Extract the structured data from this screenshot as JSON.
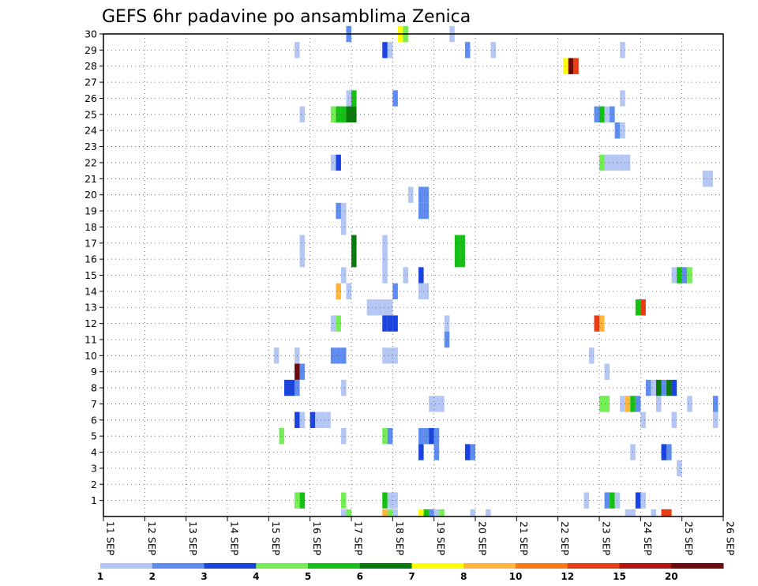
{
  "chart_data": {
    "type": "heatmap",
    "title": "GEFS 6hr padavine po ansamblima Zenica",
    "xlabel": "",
    "ylabel": "",
    "x_tick_labels": [
      "11 SEP",
      "12 SEP",
      "13 SEP",
      "14 SEP",
      "15 SEP",
      "16 SEP",
      "17 SEP",
      "18 SEP",
      "19 SEP",
      "20 SEP",
      "21 SEP",
      "22 SEP",
      "23 SEP",
      "24 SEP",
      "25 SEP",
      "26 SEP"
    ],
    "x_range": [
      "11 SEP 00Z",
      "26 SEP 00Z"
    ],
    "time_step_hours": 6,
    "y_tick_labels": [
      "1",
      "2",
      "3",
      "4",
      "5",
      "6",
      "7",
      "8",
      "9",
      "10",
      "11",
      "12",
      "13",
      "14",
      "15",
      "16",
      "17",
      "18",
      "19",
      "20",
      "21",
      "22",
      "23",
      "24",
      "25",
      "26",
      "27",
      "28",
      "29",
      "30"
    ],
    "y_range": [
      0,
      30
    ],
    "grid": "dotted",
    "colorbar": {
      "placement": "bottom",
      "labels": [
        "1",
        "2",
        "3",
        "4",
        "5",
        "6",
        "7",
        "8",
        "10",
        "12",
        "15",
        "20"
      ],
      "bounds": [
        1,
        2,
        3,
        4,
        5,
        6,
        7,
        8,
        10,
        12,
        15,
        20
      ],
      "colors": [
        "#b4c6f4",
        "#5e8cf0",
        "#1a44dd",
        "#75ee55",
        "#14c014",
        "#0a7a0a",
        "#ffff00",
        "#ffb43c",
        "#ff7a14",
        "#e83c14",
        "#b41410",
        "#6e0a0a"
      ]
    },
    "cells_note": "each cell: [member, time index (0 = 11 SEP 00Z, step 6h), color class index into colorbar.colors]",
    "cells": [
      [
        30,
        47,
        1
      ],
      [
        30,
        57,
        6
      ],
      [
        30,
        58,
        3
      ],
      [
        30,
        67,
        0
      ],
      [
        29,
        37,
        0
      ],
      [
        29,
        54,
        2
      ],
      [
        29,
        55,
        0
      ],
      [
        29,
        70,
        1
      ],
      [
        29,
        75,
        0
      ],
      [
        29,
        100,
        0
      ],
      [
        28,
        89,
        6
      ],
      [
        28,
        90,
        11
      ],
      [
        28,
        91,
        9
      ],
      [
        26,
        47,
        0
      ],
      [
        26,
        48,
        4
      ],
      [
        26,
        56,
        1
      ],
      [
        26,
        100,
        0
      ],
      [
        26,
        143,
        5
      ],
      [
        26,
        144,
        0
      ],
      [
        25,
        38,
        0
      ],
      [
        25,
        44,
        3
      ],
      [
        25,
        45,
        4
      ],
      [
        25,
        46,
        4
      ],
      [
        25,
        47,
        5
      ],
      [
        25,
        48,
        5
      ],
      [
        25,
        95,
        1
      ],
      [
        25,
        96,
        4
      ],
      [
        25,
        97,
        0
      ],
      [
        25,
        98,
        1
      ],
      [
        25,
        140,
        0
      ],
      [
        24,
        99,
        1
      ],
      [
        24,
        100,
        0
      ],
      [
        24,
        126,
        1
      ],
      [
        24,
        127,
        3
      ],
      [
        24,
        138,
        4
      ],
      [
        24,
        139,
        0
      ],
      [
        23,
        124,
        0
      ],
      [
        22,
        44,
        0
      ],
      [
        22,
        45,
        2
      ],
      [
        22,
        96,
        3
      ],
      [
        22,
        97,
        0
      ],
      [
        22,
        98,
        0
      ],
      [
        22,
        99,
        0
      ],
      [
        22,
        100,
        0
      ],
      [
        22,
        101,
        0
      ],
      [
        21,
        116,
        0
      ],
      [
        21,
        117,
        0
      ],
      [
        21,
        124,
        0
      ],
      [
        21,
        125,
        0
      ],
      [
        20,
        59,
        0
      ],
      [
        20,
        61,
        1
      ],
      [
        20,
        62,
        1
      ],
      [
        20,
        146,
        0
      ],
      [
        19,
        45,
        1
      ],
      [
        19,
        46,
        0
      ],
      [
        19,
        61,
        1
      ],
      [
        19,
        62,
        1
      ],
      [
        18,
        46,
        0
      ],
      [
        17,
        38,
        0
      ],
      [
        17,
        48,
        5
      ],
      [
        17,
        54,
        0
      ],
      [
        17,
        68,
        4
      ],
      [
        17,
        69,
        4
      ],
      [
        17,
        124,
        0
      ],
      [
        17,
        126,
        9
      ],
      [
        17,
        127,
        8
      ],
      [
        17,
        129,
        1
      ],
      [
        17,
        130,
        0
      ],
      [
        16,
        38,
        0
      ],
      [
        16,
        48,
        5
      ],
      [
        16,
        54,
        0
      ],
      [
        16,
        68,
        4
      ],
      [
        16,
        69,
        4
      ],
      [
        16,
        124,
        0
      ],
      [
        16,
        126,
        9
      ],
      [
        16,
        127,
        8
      ],
      [
        16,
        129,
        1
      ],
      [
        16,
        130,
        0
      ],
      [
        15,
        46,
        0
      ],
      [
        15,
        54,
        0
      ],
      [
        15,
        58,
        0
      ],
      [
        15,
        61,
        2
      ],
      [
        15,
        110,
        0
      ],
      [
        15,
        111,
        4
      ],
      [
        15,
        112,
        1
      ],
      [
        15,
        113,
        3
      ],
      [
        15,
        124,
        0
      ],
      [
        14,
        45,
        7
      ],
      [
        14,
        47,
        0
      ],
      [
        14,
        56,
        1
      ],
      [
        14,
        61,
        0
      ],
      [
        14,
        62,
        0
      ],
      [
        13,
        51,
        0
      ],
      [
        13,
        52,
        0
      ],
      [
        13,
        53,
        0
      ],
      [
        13,
        54,
        0
      ],
      [
        13,
        55,
        0
      ],
      [
        13,
        103,
        4
      ],
      [
        13,
        104,
        9
      ],
      [
        13,
        122,
        0
      ],
      [
        13,
        123,
        0
      ],
      [
        13,
        124,
        0
      ],
      [
        13,
        125,
        0
      ],
      [
        13,
        126,
        0
      ],
      [
        13,
        127,
        0
      ],
      [
        12,
        44,
        0
      ],
      [
        12,
        45,
        3
      ],
      [
        12,
        54,
        2
      ],
      [
        12,
        55,
        2
      ],
      [
        12,
        56,
        2
      ],
      [
        12,
        66,
        0
      ],
      [
        12,
        95,
        9
      ],
      [
        12,
        96,
        7
      ],
      [
        11,
        66,
        1
      ],
      [
        10,
        33,
        0
      ],
      [
        10,
        37,
        0
      ],
      [
        10,
        44,
        1
      ],
      [
        10,
        45,
        1
      ],
      [
        10,
        46,
        1
      ],
      [
        10,
        54,
        0
      ],
      [
        10,
        55,
        0
      ],
      [
        10,
        56,
        0
      ],
      [
        10,
        94,
        0
      ],
      [
        10,
        138,
        0
      ],
      [
        9,
        37,
        11
      ],
      [
        9,
        38,
        1
      ],
      [
        9,
        97,
        0
      ],
      [
        8,
        35,
        2
      ],
      [
        8,
        36,
        2
      ],
      [
        8,
        37,
        1
      ],
      [
        8,
        46,
        0
      ],
      [
        8,
        105,
        1
      ],
      [
        8,
        106,
        0
      ],
      [
        8,
        107,
        5
      ],
      [
        8,
        108,
        1
      ],
      [
        8,
        109,
        5
      ],
      [
        8,
        110,
        2
      ],
      [
        7,
        63,
        0
      ],
      [
        7,
        64,
        0
      ],
      [
        7,
        65,
        0
      ],
      [
        7,
        96,
        3
      ],
      [
        7,
        97,
        3
      ],
      [
        7,
        100,
        0
      ],
      [
        7,
        101,
        7
      ],
      [
        7,
        102,
        4
      ],
      [
        7,
        103,
        1
      ],
      [
        7,
        107,
        0
      ],
      [
        7,
        113,
        0
      ],
      [
        7,
        118,
        1
      ],
      [
        7,
        122,
        0
      ],
      [
        7,
        139,
        0
      ],
      [
        7,
        144,
        1
      ],
      [
        7,
        145,
        3
      ],
      [
        6,
        37,
        2
      ],
      [
        6,
        38,
        0
      ],
      [
        6,
        40,
        2
      ],
      [
        6,
        41,
        0
      ],
      [
        6,
        42,
        0
      ],
      [
        6,
        43,
        0
      ],
      [
        6,
        104,
        0
      ],
      [
        6,
        110,
        0
      ],
      [
        6,
        118,
        0
      ],
      [
        5,
        34,
        3
      ],
      [
        5,
        46,
        0
      ],
      [
        5,
        54,
        3
      ],
      [
        5,
        55,
        1
      ],
      [
        5,
        61,
        1
      ],
      [
        5,
        62,
        1
      ],
      [
        5,
        63,
        2
      ],
      [
        5,
        64,
        1
      ],
      [
        4,
        61,
        2
      ],
      [
        4,
        64,
        1
      ],
      [
        4,
        70,
        2
      ],
      [
        4,
        71,
        1
      ],
      [
        4,
        102,
        0
      ],
      [
        4,
        108,
        2
      ],
      [
        4,
        109,
        1
      ],
      [
        3,
        111,
        0
      ],
      [
        1,
        37,
        3
      ],
      [
        1,
        38,
        4
      ],
      [
        1,
        46,
        3
      ],
      [
        1,
        54,
        4
      ],
      [
        1,
        55,
        0
      ],
      [
        1,
        56,
        0
      ],
      [
        1,
        93,
        0
      ],
      [
        1,
        97,
        1
      ],
      [
        1,
        98,
        4
      ],
      [
        1,
        99,
        0
      ],
      [
        1,
        103,
        2
      ],
      [
        1,
        104,
        0
      ],
      [
        1,
        144,
        1
      ],
      [
        0,
        46,
        0
      ],
      [
        0,
        47,
        3
      ],
      [
        0,
        54,
        7
      ],
      [
        0,
        55,
        3
      ],
      [
        0,
        56,
        0
      ],
      [
        0,
        61,
        6
      ],
      [
        0,
        62,
        4
      ],
      [
        0,
        63,
        1
      ],
      [
        0,
        64,
        0
      ],
      [
        0,
        65,
        3
      ],
      [
        0,
        71,
        0
      ],
      [
        0,
        74,
        0
      ],
      [
        0,
        101,
        0
      ],
      [
        0,
        102,
        0
      ],
      [
        0,
        106,
        0
      ],
      [
        0,
        108,
        9
      ],
      [
        0,
        109,
        9
      ]
    ]
  }
}
